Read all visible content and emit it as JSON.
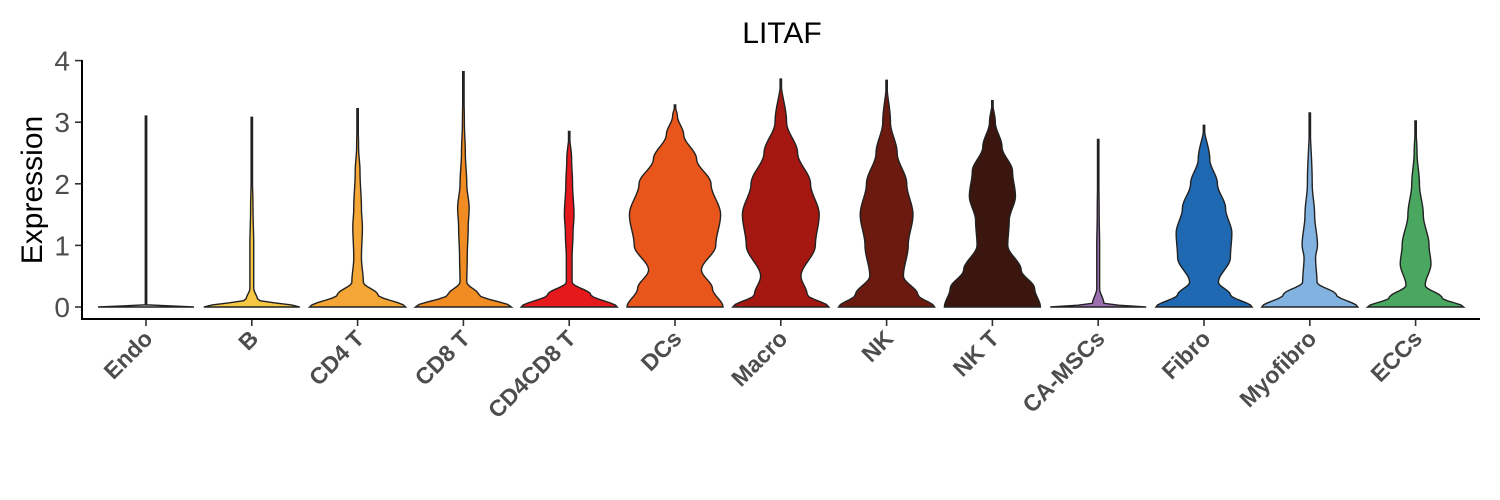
{
  "chart_data": {
    "type": "violin",
    "title": "LITAF",
    "ylabel": "Expression",
    "xlabel": "",
    "ylim": [
      -0.2,
      4.0
    ],
    "yticks": [
      0,
      1,
      2,
      3,
      4
    ],
    "grid": false,
    "legend": "none",
    "categories": [
      "Endo",
      "B",
      "CD4 T",
      "CD8 T",
      "CD4CD8 T",
      "DCs",
      "Macro",
      "NK",
      "NK T",
      "CA-MSCs",
      "Fibro",
      "Myofibro",
      "ECCs"
    ],
    "series": [
      {
        "color": "#d9d9d9",
        "max": 3.1,
        "profile": [
          [
            0,
            1.0
          ],
          [
            0.03,
            0.005
          ],
          [
            0.3,
            0.003
          ],
          [
            3.1,
            0.003
          ]
        ]
      },
      {
        "color": "#f6c744",
        "max": 3.08,
        "profile": [
          [
            0,
            1.0
          ],
          [
            0.12,
            0.12
          ],
          [
            0.3,
            0.04
          ],
          [
            1.0,
            0.04
          ],
          [
            1.6,
            0.025
          ],
          [
            2.2,
            0.01
          ],
          [
            3.08,
            0
          ]
        ]
      },
      {
        "color": "#f4a636",
        "max": 3.22,
        "profile": [
          [
            0,
            1.0
          ],
          [
            0.2,
            0.42
          ],
          [
            0.4,
            0.12
          ],
          [
            0.8,
            0.08
          ],
          [
            1.3,
            0.1
          ],
          [
            1.6,
            0.08
          ],
          [
            2.2,
            0.05
          ],
          [
            2.6,
            0.02
          ],
          [
            3.22,
            0
          ]
        ]
      },
      {
        "color": "#f08c22",
        "max": 3.82,
        "profile": [
          [
            0,
            1.0
          ],
          [
            0.2,
            0.32
          ],
          [
            0.4,
            0.07
          ],
          [
            0.8,
            0.08
          ],
          [
            1.3,
            0.1
          ],
          [
            1.6,
            0.12
          ],
          [
            2.0,
            0.07
          ],
          [
            2.5,
            0.04
          ],
          [
            3.0,
            0.02
          ],
          [
            3.82,
            0
          ]
        ]
      },
      {
        "color": "#e5191c",
        "max": 2.85,
        "profile": [
          [
            0,
            1.0
          ],
          [
            0.2,
            0.45
          ],
          [
            0.4,
            0.06
          ],
          [
            0.8,
            0.06
          ],
          [
            1.2,
            0.08
          ],
          [
            1.5,
            0.1
          ],
          [
            2.0,
            0.07
          ],
          [
            2.4,
            0.05
          ],
          [
            2.85,
            0
          ]
        ]
      },
      {
        "color": "#e8561c",
        "max": 3.28,
        "profile": [
          [
            0,
            1.0
          ],
          [
            0.3,
            0.78
          ],
          [
            0.6,
            0.55
          ],
          [
            1.0,
            0.85
          ],
          [
            1.5,
            0.95
          ],
          [
            2.0,
            0.75
          ],
          [
            2.4,
            0.45
          ],
          [
            2.8,
            0.18
          ],
          [
            3.1,
            0.05
          ],
          [
            3.28,
            0
          ]
        ]
      },
      {
        "color": "#a51812",
        "max": 3.7,
        "profile": [
          [
            0,
            1.0
          ],
          [
            0.2,
            0.55
          ],
          [
            0.5,
            0.42
          ],
          [
            1.0,
            0.72
          ],
          [
            1.5,
            0.8
          ],
          [
            2.0,
            0.62
          ],
          [
            2.5,
            0.35
          ],
          [
            3.0,
            0.12
          ],
          [
            3.7,
            0
          ]
        ]
      },
      {
        "color": "#6c1a10",
        "max": 3.68,
        "profile": [
          [
            0,
            1.0
          ],
          [
            0.2,
            0.65
          ],
          [
            0.5,
            0.35
          ],
          [
            1.0,
            0.45
          ],
          [
            1.5,
            0.55
          ],
          [
            2.0,
            0.42
          ],
          [
            2.5,
            0.22
          ],
          [
            3.0,
            0.08
          ],
          [
            3.68,
            0
          ]
        ]
      },
      {
        "color": "#3b160e",
        "max": 3.35,
        "profile": [
          [
            0,
            1.0
          ],
          [
            0.3,
            0.88
          ],
          [
            0.6,
            0.6
          ],
          [
            1.0,
            0.32
          ],
          [
            1.4,
            0.35
          ],
          [
            1.8,
            0.48
          ],
          [
            2.2,
            0.42
          ],
          [
            2.6,
            0.2
          ],
          [
            3.0,
            0.06
          ],
          [
            3.35,
            0
          ]
        ]
      },
      {
        "color": "#9b6fb0",
        "max": 2.72,
        "profile": [
          [
            0,
            1.0
          ],
          [
            0.05,
            0.12
          ],
          [
            0.3,
            0.03
          ],
          [
            1.0,
            0.03
          ],
          [
            1.5,
            0.02
          ],
          [
            2.72,
            0
          ]
        ]
      },
      {
        "color": "#1f68b2",
        "max": 2.95,
        "profile": [
          [
            0,
            1.0
          ],
          [
            0.2,
            0.55
          ],
          [
            0.4,
            0.3
          ],
          [
            0.8,
            0.55
          ],
          [
            1.2,
            0.58
          ],
          [
            1.6,
            0.45
          ],
          [
            2.0,
            0.28
          ],
          [
            2.4,
            0.12
          ],
          [
            2.95,
            0
          ]
        ]
      },
      {
        "color": "#82b2df",
        "max": 3.15,
        "profile": [
          [
            0,
            1.0
          ],
          [
            0.2,
            0.55
          ],
          [
            0.4,
            0.15
          ],
          [
            0.8,
            0.12
          ],
          [
            1.0,
            0.16
          ],
          [
            1.5,
            0.1
          ],
          [
            2.0,
            0.05
          ],
          [
            3.15,
            0
          ]
        ]
      },
      {
        "color": "#4aa760",
        "max": 3.02,
        "profile": [
          [
            0,
            1.0
          ],
          [
            0.15,
            0.55
          ],
          [
            0.35,
            0.2
          ],
          [
            0.7,
            0.32
          ],
          [
            1.0,
            0.28
          ],
          [
            1.5,
            0.16
          ],
          [
            2.0,
            0.08
          ],
          [
            2.5,
            0.03
          ],
          [
            3.02,
            0
          ]
        ]
      }
    ]
  }
}
